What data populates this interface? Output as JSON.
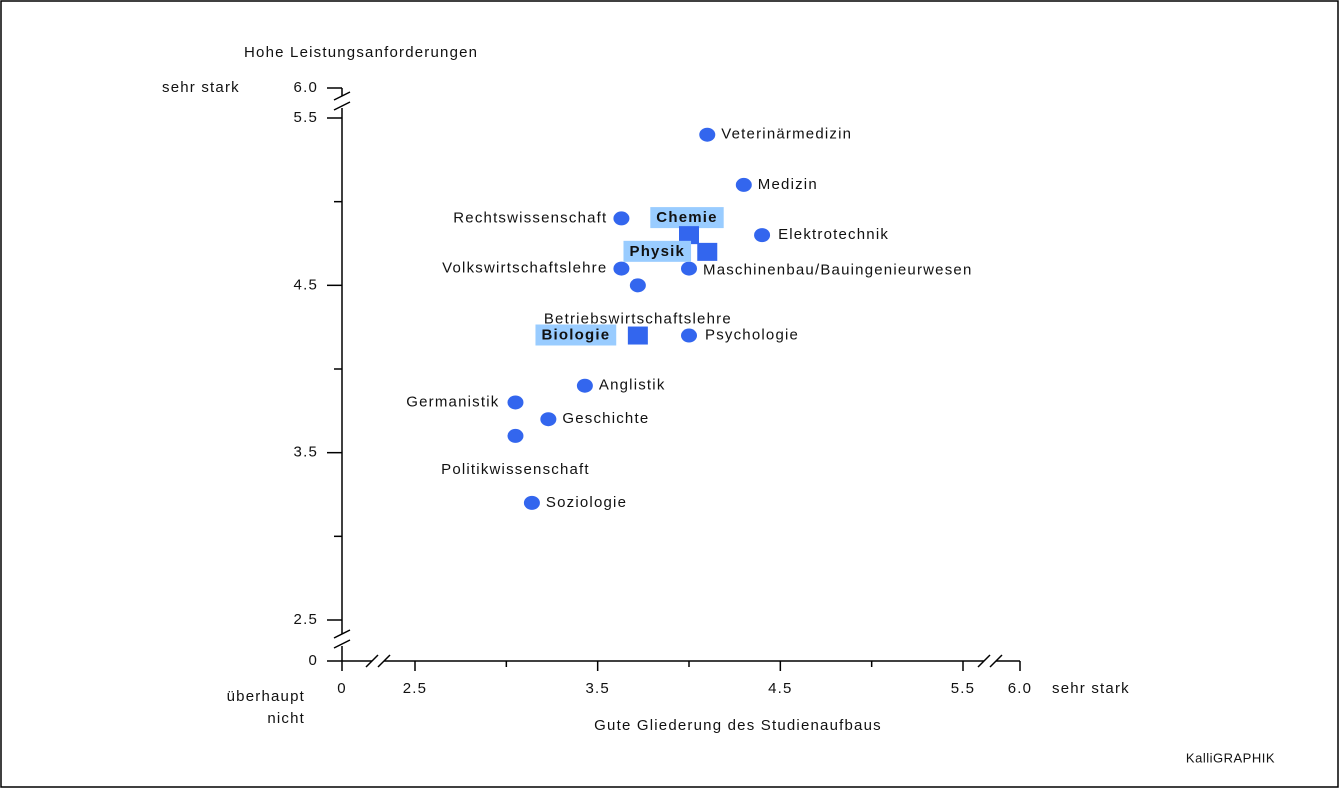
{
  "chart_data": {
    "type": "scatter",
    "y_title": "Hohe Leistungsanforderungen",
    "x_title": "Gute Gliederung des Studienaufbaus",
    "y_high_label": "sehr stark",
    "x_high_label": "sehr stark",
    "low_label": [
      "überhaupt",
      "nicht"
    ],
    "credit": "KalliGRAPHIK",
    "color": "#3366ee",
    "highlight_color": "#99ccff",
    "xlim": [
      2.5,
      5.5
    ],
    "ylim": [
      2.5,
      5.5
    ],
    "xticks": [
      2.5,
      3.5,
      4.5,
      5.5
    ],
    "yticks": [
      2.5,
      3.5,
      4.5,
      5.5
    ],
    "x_minor_ticks": [
      3,
      4,
      5
    ],
    "y_minor_ticks": [
      3,
      4,
      5
    ],
    "x_break_labels": [
      0,
      {
        "value": 6,
        "label": "6.0"
      }
    ],
    "y_break_labels": [
      0,
      {
        "value": 6,
        "label": "6.0"
      }
    ],
    "points": [
      {
        "label": "Veterinärmedizin",
        "x": 4.1,
        "y": 5.4,
        "shape": "circle"
      },
      {
        "label": "Medizin",
        "x": 4.3,
        "y": 5.1,
        "shape": "circle"
      },
      {
        "label": "Rechtswissenschaft",
        "x": 3.63,
        "y": 4.9,
        "shape": "circle"
      },
      {
        "label": "Elektrotechnik",
        "x": 4.4,
        "y": 4.8,
        "shape": "circle"
      },
      {
        "label": "Volkswirtschaftslehre",
        "x": 3.63,
        "y": 4.6,
        "shape": "circle"
      },
      {
        "label": "Maschinenbau/Bauingenieurwesen",
        "x": 4.0,
        "y": 4.6,
        "shape": "circle"
      },
      {
        "label": "Betriebswirtschaftslehre",
        "x": 3.72,
        "y": 4.5,
        "shape": "circle"
      },
      {
        "label": "Psychologie",
        "x": 4.0,
        "y": 4.2,
        "shape": "circle"
      },
      {
        "label": "Anglistik",
        "x": 3.43,
        "y": 3.9,
        "shape": "circle"
      },
      {
        "label": "Germanistik",
        "x": 3.05,
        "y": 3.8,
        "shape": "circle"
      },
      {
        "label": "Geschichte",
        "x": 3.23,
        "y": 3.7,
        "shape": "circle"
      },
      {
        "label": "Politikwissenschaft",
        "x": 3.05,
        "y": 3.6,
        "shape": "circle"
      },
      {
        "label": "Soziologie",
        "x": 3.14,
        "y": 3.2,
        "shape": "circle"
      },
      {
        "label": "Chemie",
        "x": 4.0,
        "y": 4.8,
        "shape": "square"
      },
      {
        "label": "Physik",
        "x": 4.1,
        "y": 4.7,
        "shape": "square"
      },
      {
        "label": "Biologie",
        "x": 3.72,
        "y": 4.2,
        "shape": "square"
      }
    ]
  }
}
